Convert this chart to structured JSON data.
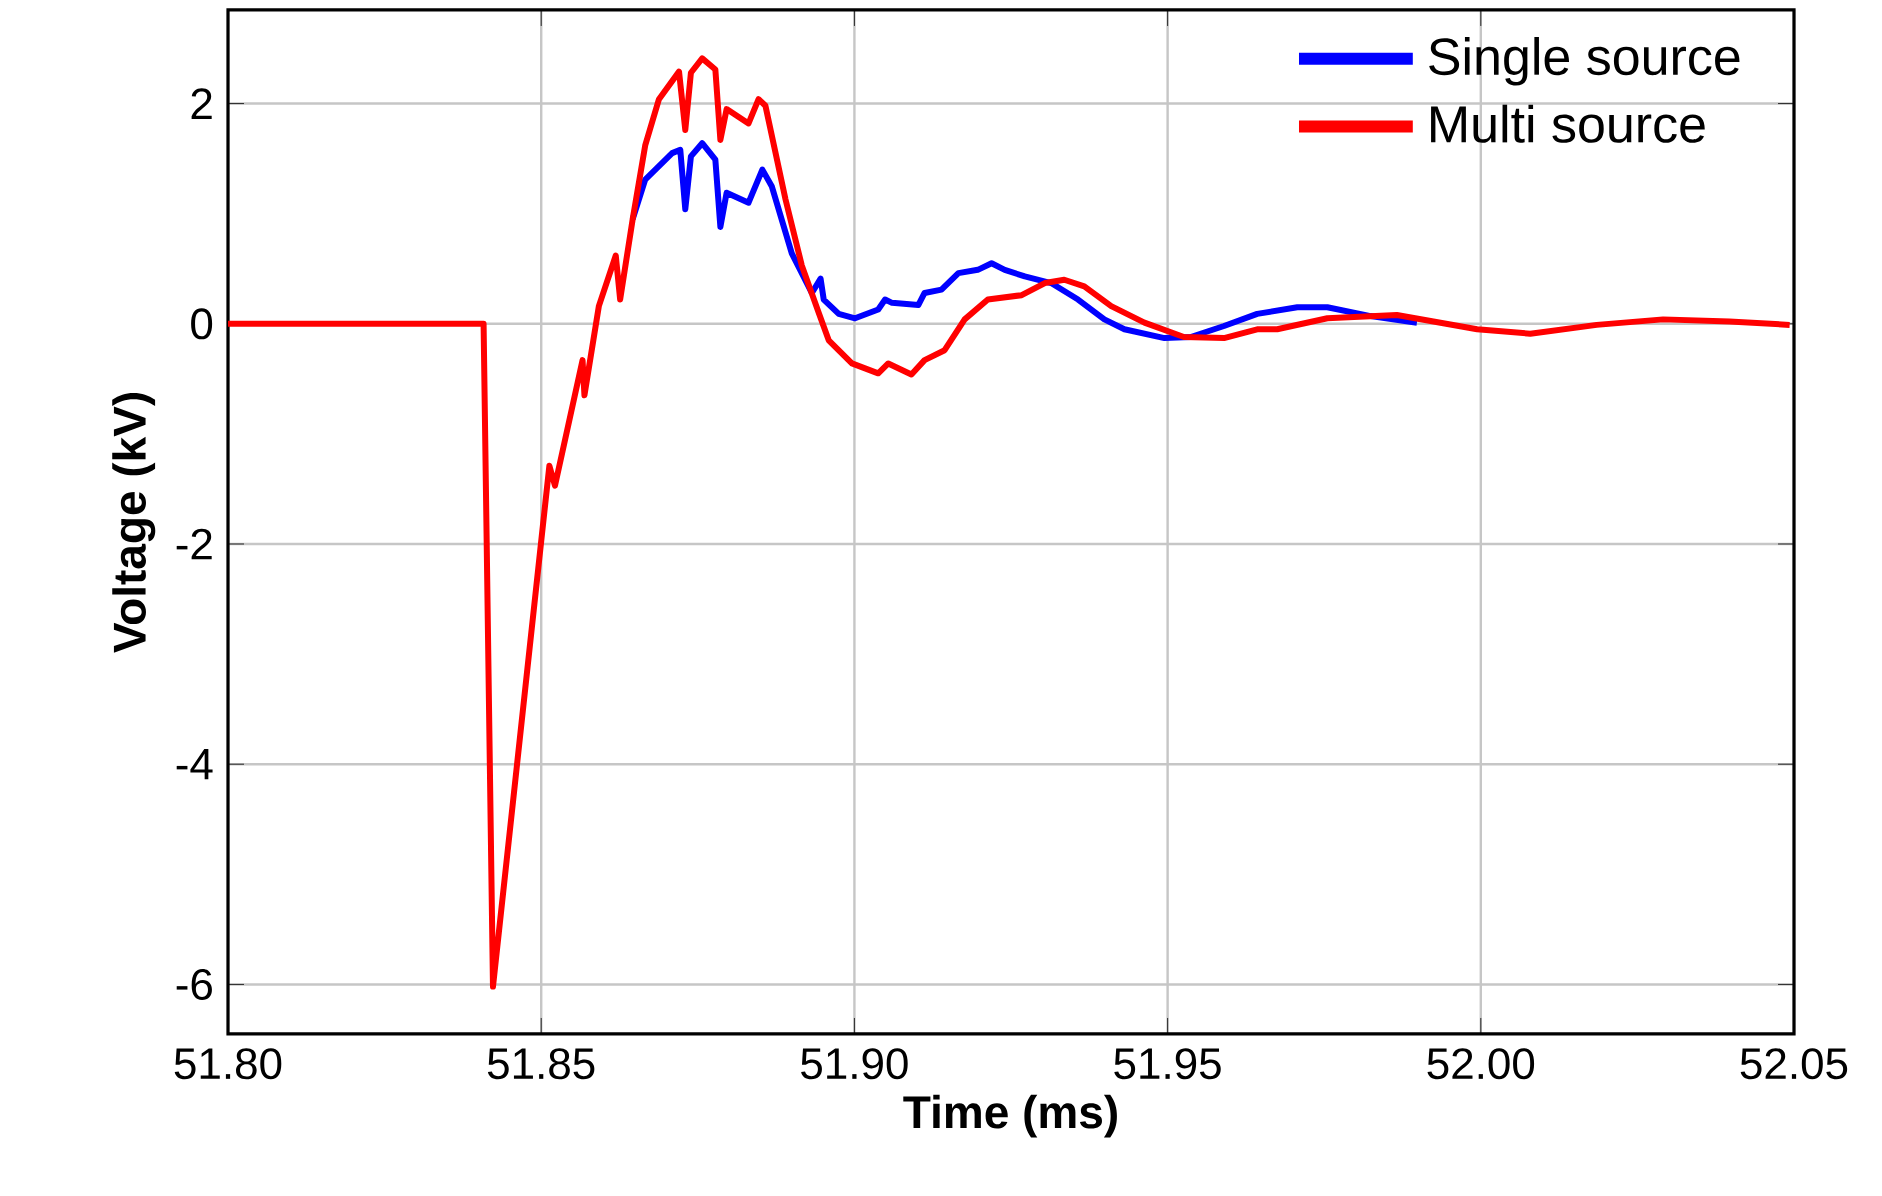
{
  "chart_data": {
    "type": "line",
    "xlabel": "Time (ms)",
    "ylabel": "Voltage (kV)",
    "xlim": [
      51.8,
      52.05
    ],
    "ylim": [
      -6.45,
      2.85
    ],
    "xticks": [
      {
        "value": 51.8,
        "label": "51.80"
      },
      {
        "value": 51.85,
        "label": "51.85"
      },
      {
        "value": 51.9,
        "label": "51.90"
      },
      {
        "value": 51.95,
        "label": "51.95"
      },
      {
        "value": 52.0,
        "label": "52.00"
      },
      {
        "value": 52.05,
        "label": "52.05"
      }
    ],
    "yticks": [
      -6,
      -4,
      -2,
      0,
      2
    ],
    "grid": true,
    "legend": "top right",
    "marker": "none",
    "line_style": "solid",
    "series": [
      {
        "name": "Single source",
        "color": "#0000ff",
        "x": [
          51.8646,
          51.8666,
          51.8709,
          51.8722,
          51.873,
          51.8739,
          51.8757,
          51.8778,
          51.8786,
          51.8796,
          51.8831,
          51.8853,
          51.8868,
          51.89,
          51.8932,
          51.8946,
          51.8951,
          51.8975,
          51.9001,
          51.9038,
          51.9049,
          51.906,
          51.9102,
          51.9112,
          51.9139,
          51.9166,
          51.9197,
          51.9219,
          51.924,
          51.9272,
          51.9314,
          51.9357,
          51.9399,
          51.9431,
          51.9495,
          51.9537,
          51.959,
          51.9643,
          51.9707,
          51.9755,
          51.9824,
          51.9898
        ],
        "values": [
          0.95,
          1.31,
          1.55,
          1.58,
          1.04,
          1.52,
          1.64,
          1.49,
          0.88,
          1.19,
          1.1,
          1.4,
          1.25,
          0.64,
          0.28,
          0.41,
          0.22,
          0.09,
          0.05,
          0.13,
          0.22,
          0.19,
          0.17,
          0.28,
          0.31,
          0.46,
          0.49,
          0.55,
          0.49,
          0.43,
          0.37,
          0.22,
          0.04,
          -0.05,
          -0.13,
          -0.12,
          -0.02,
          0.09,
          0.15,
          0.15,
          0.07,
          0.01
        ]
      },
      {
        "name": "Multi source",
        "color": "#ff0000",
        "x": [
          51.8,
          51.8408,
          51.8423,
          51.8513,
          51.8522,
          51.8566,
          51.8569,
          51.8592,
          51.8619,
          51.8626,
          51.8646,
          51.8666,
          51.8688,
          51.872,
          51.873,
          51.8739,
          51.8757,
          51.8778,
          51.8786,
          51.8796,
          51.8831,
          51.8847,
          51.8858,
          51.889,
          51.8916,
          51.8943,
          51.8959,
          51.8996,
          51.9038,
          51.9054,
          51.9091,
          51.9112,
          51.9144,
          51.9176,
          51.9213,
          51.9267,
          51.9304,
          51.9335,
          51.9367,
          51.941,
          51.9463,
          51.9526,
          51.959,
          51.9643,
          51.9675,
          51.9755,
          51.9866,
          51.9994,
          52.0079,
          52.0185,
          52.0291,
          52.0397,
          52.0493
        ],
        "values": [
          0,
          0,
          -6.02,
          -1.29,
          -1.47,
          -0.33,
          -0.65,
          0.16,
          0.62,
          0.22,
          0.95,
          1.62,
          2.04,
          2.29,
          1.76,
          2.28,
          2.41,
          2.31,
          1.67,
          1.95,
          1.82,
          2.04,
          1.98,
          1.13,
          0.53,
          0.1,
          -0.15,
          -0.36,
          -0.45,
          -0.36,
          -0.46,
          -0.33,
          -0.24,
          0.04,
          0.22,
          0.26,
          0.37,
          0.4,
          0.34,
          0.16,
          0.01,
          -0.12,
          -0.13,
          -0.05,
          -0.05,
          0.05,
          0.08,
          -0.05,
          -0.09,
          -0.01,
          0.04,
          0.02,
          -0.01
        ]
      }
    ]
  }
}
